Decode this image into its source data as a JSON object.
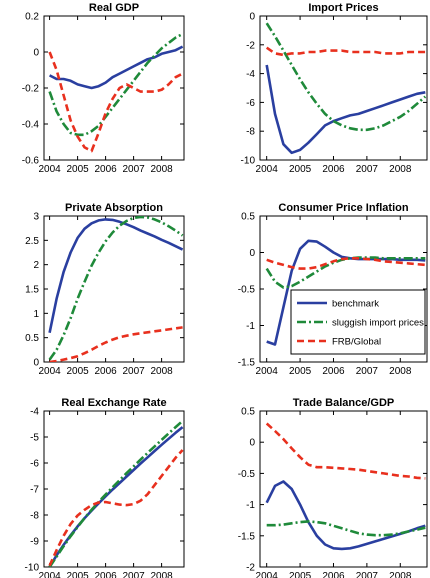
{
  "chart_data": [
    {
      "type": "line",
      "title": "Real GDP",
      "xlim": [
        2003.8,
        2008.8
      ],
      "ylim": [
        -0.6,
        0.2
      ],
      "xticks": [
        "2004",
        "2005",
        "2006",
        "2007",
        "2008"
      ],
      "yticks": [
        "-0.6",
        "-0.4",
        "-0.2",
        "0",
        "0.2"
      ],
      "series": [
        {
          "name": "benchmark",
          "x": [
            2004.0,
            2004.25,
            2004.5,
            2004.75,
            2005.0,
            2005.25,
            2005.5,
            2005.75,
            2006.0,
            2006.25,
            2006.5,
            2006.75,
            2007.0,
            2007.25,
            2007.5,
            2007.75,
            2008.0,
            2008.25,
            2008.5,
            2008.75
          ],
          "y": [
            -0.13,
            -0.15,
            -0.15,
            -0.16,
            -0.18,
            -0.19,
            -0.2,
            -0.19,
            -0.17,
            -0.14,
            -0.12,
            -0.1,
            -0.08,
            -0.06,
            -0.04,
            -0.03,
            -0.01,
            0.0,
            0.01,
            0.03
          ]
        },
        {
          "name": "sluggish import prices",
          "x": [
            2004.0,
            2004.25,
            2004.5,
            2004.75,
            2005.0,
            2005.25,
            2005.5,
            2005.75,
            2006.0,
            2006.25,
            2006.5,
            2006.75,
            2007.0,
            2007.25,
            2007.5,
            2007.75,
            2008.0,
            2008.25,
            2008.5,
            2008.75
          ],
          "y": [
            -0.22,
            -0.33,
            -0.4,
            -0.45,
            -0.46,
            -0.46,
            -0.44,
            -0.41,
            -0.36,
            -0.31,
            -0.26,
            -0.21,
            -0.16,
            -0.11,
            -0.06,
            -0.02,
            0.02,
            0.05,
            0.08,
            0.1
          ]
        },
        {
          "name": "FRB/Global",
          "x": [
            2004.0,
            2004.25,
            2004.5,
            2004.75,
            2005.0,
            2005.25,
            2005.5,
            2005.75,
            2006.0,
            2006.25,
            2006.5,
            2006.75,
            2007.0,
            2007.25,
            2007.5,
            2007.75,
            2008.0,
            2008.25,
            2008.5,
            2008.75
          ],
          "y": [
            0.0,
            -0.1,
            -0.24,
            -0.38,
            -0.47,
            -0.53,
            -0.55,
            -0.45,
            -0.34,
            -0.26,
            -0.2,
            -0.18,
            -0.2,
            -0.22,
            -0.22,
            -0.22,
            -0.21,
            -0.18,
            -0.14,
            -0.12
          ]
        }
      ]
    },
    {
      "type": "line",
      "title": "Import Prices",
      "xlim": [
        2003.8,
        2008.8
      ],
      "ylim": [
        -10,
        0
      ],
      "xticks": [
        "2004",
        "2005",
        "2006",
        "2007",
        "2008"
      ],
      "yticks": [
        "-10",
        "-8",
        "-6",
        "-4",
        "-2",
        "0"
      ],
      "series": [
        {
          "name": "benchmark",
          "x": [
            2004.0,
            2004.25,
            2004.5,
            2004.75,
            2005.0,
            2005.25,
            2005.5,
            2005.75,
            2006.0,
            2006.25,
            2006.5,
            2006.75,
            2007.0,
            2007.25,
            2007.5,
            2007.75,
            2008.0,
            2008.25,
            2008.5,
            2008.75
          ],
          "y": [
            -3.4,
            -6.8,
            -8.9,
            -9.5,
            -9.3,
            -8.8,
            -8.2,
            -7.6,
            -7.3,
            -7.1,
            -6.9,
            -6.8,
            -6.6,
            -6.4,
            -6.2,
            -6.0,
            -5.8,
            -5.6,
            -5.4,
            -5.3
          ]
        },
        {
          "name": "sluggish import prices",
          "x": [
            2004.0,
            2004.25,
            2004.5,
            2004.75,
            2005.0,
            2005.25,
            2005.5,
            2005.75,
            2006.0,
            2006.25,
            2006.5,
            2006.75,
            2007.0,
            2007.25,
            2007.5,
            2007.75,
            2008.0,
            2008.25,
            2008.5,
            2008.75
          ],
          "y": [
            -0.5,
            -1.4,
            -2.4,
            -3.4,
            -4.4,
            -5.3,
            -6.1,
            -6.8,
            -7.3,
            -7.6,
            -7.8,
            -7.9,
            -7.9,
            -7.8,
            -7.6,
            -7.3,
            -7.0,
            -6.6,
            -6.1,
            -5.6
          ]
        },
        {
          "name": "FRB/Global",
          "x": [
            2004.0,
            2004.25,
            2004.5,
            2004.75,
            2005.0,
            2005.25,
            2005.5,
            2005.75,
            2006.0,
            2006.25,
            2006.5,
            2006.75,
            2007.0,
            2007.25,
            2007.5,
            2007.75,
            2008.0,
            2008.25,
            2008.5,
            2008.75
          ],
          "y": [
            -2.2,
            -2.6,
            -2.7,
            -2.6,
            -2.6,
            -2.5,
            -2.5,
            -2.4,
            -2.4,
            -2.4,
            -2.5,
            -2.5,
            -2.5,
            -2.5,
            -2.6,
            -2.6,
            -2.6,
            -2.5,
            -2.5,
            -2.5
          ]
        }
      ]
    },
    {
      "type": "line",
      "title": "Private Absorption",
      "xlim": [
        2003.8,
        2008.8
      ],
      "ylim": [
        0,
        3
      ],
      "xticks": [
        "2004",
        "2005",
        "2006",
        "2007",
        "2008"
      ],
      "yticks": [
        "0",
        "0.5",
        "1",
        "1.5",
        "2",
        "2.5",
        "3"
      ],
      "series": [
        {
          "name": "benchmark",
          "x": [
            2004.0,
            2004.25,
            2004.5,
            2004.75,
            2005.0,
            2005.25,
            2005.5,
            2005.75,
            2006.0,
            2006.25,
            2006.5,
            2006.75,
            2007.0,
            2007.25,
            2007.5,
            2007.75,
            2008.0,
            2008.25,
            2008.5,
            2008.75
          ],
          "y": [
            0.6,
            1.3,
            1.85,
            2.25,
            2.55,
            2.74,
            2.85,
            2.91,
            2.93,
            2.92,
            2.88,
            2.83,
            2.77,
            2.7,
            2.64,
            2.58,
            2.51,
            2.45,
            2.38,
            2.31
          ]
        },
        {
          "name": "sluggish import prices",
          "x": [
            2004.0,
            2004.25,
            2004.5,
            2004.75,
            2005.0,
            2005.25,
            2005.5,
            2005.75,
            2006.0,
            2006.25,
            2006.5,
            2006.75,
            2007.0,
            2007.25,
            2007.5,
            2007.75,
            2008.0,
            2008.25,
            2008.5,
            2008.75
          ],
          "y": [
            0.05,
            0.25,
            0.55,
            0.9,
            1.3,
            1.65,
            1.98,
            2.25,
            2.48,
            2.66,
            2.8,
            2.9,
            2.96,
            2.98,
            2.97,
            2.93,
            2.87,
            2.79,
            2.7,
            2.6
          ]
        },
        {
          "name": "FRB/Global",
          "x": [
            2004.0,
            2004.25,
            2004.5,
            2004.75,
            2005.0,
            2005.25,
            2005.5,
            2005.75,
            2006.0,
            2006.25,
            2006.5,
            2006.75,
            2007.0,
            2007.25,
            2007.5,
            2007.75,
            2008.0,
            2008.25,
            2008.5,
            2008.75
          ],
          "y": [
            0.0,
            0.02,
            0.05,
            0.08,
            0.12,
            0.18,
            0.25,
            0.33,
            0.4,
            0.46,
            0.51,
            0.54,
            0.57,
            0.59,
            0.61,
            0.63,
            0.65,
            0.67,
            0.69,
            0.71
          ]
        }
      ]
    },
    {
      "type": "line",
      "title": "Consumer Price Inflation",
      "xlim": [
        2003.8,
        2008.8
      ],
      "ylim": [
        -1.5,
        0.5
      ],
      "xticks": [
        "2004",
        "2005",
        "2006",
        "2007",
        "2008"
      ],
      "yticks": [
        "-1.5",
        "-1",
        "-0.5",
        "0",
        "0.5"
      ],
      "series": [
        {
          "name": "benchmark",
          "x": [
            2004.0,
            2004.25,
            2004.5,
            2004.75,
            2005.0,
            2005.25,
            2005.5,
            2005.75,
            2006.0,
            2006.25,
            2006.5,
            2006.75,
            2007.0,
            2007.25,
            2007.5,
            2007.75,
            2008.0,
            2008.25,
            2008.5,
            2008.75
          ],
          "y": [
            -1.22,
            -1.26,
            -0.75,
            -0.25,
            0.05,
            0.16,
            0.15,
            0.08,
            0.0,
            -0.06,
            -0.08,
            -0.09,
            -0.09,
            -0.09,
            -0.09,
            -0.09,
            -0.1,
            -0.1,
            -0.1,
            -0.11
          ]
        },
        {
          "name": "sluggish import prices",
          "x": [
            2004.0,
            2004.25,
            2004.5,
            2004.75,
            2005.0,
            2005.25,
            2005.5,
            2005.75,
            2006.0,
            2006.25,
            2006.5,
            2006.75,
            2007.0,
            2007.25,
            2007.5,
            2007.75,
            2008.0,
            2008.25,
            2008.5,
            2008.75
          ],
          "y": [
            -0.22,
            -0.4,
            -0.48,
            -0.46,
            -0.4,
            -0.33,
            -0.26,
            -0.19,
            -0.14,
            -0.1,
            -0.08,
            -0.07,
            -0.07,
            -0.07,
            -0.08,
            -0.08,
            -0.08,
            -0.08,
            -0.08,
            -0.08
          ]
        },
        {
          "name": "FRB/Global",
          "x": [
            2004.0,
            2004.25,
            2004.5,
            2004.75,
            2005.0,
            2005.25,
            2005.5,
            2005.75,
            2006.0,
            2006.25,
            2006.5,
            2006.75,
            2007.0,
            2007.25,
            2007.5,
            2007.75,
            2008.0,
            2008.25,
            2008.5,
            2008.75
          ],
          "y": [
            -0.1,
            -0.14,
            -0.17,
            -0.2,
            -0.22,
            -0.22,
            -0.2,
            -0.16,
            -0.12,
            -0.09,
            -0.08,
            -0.08,
            -0.09,
            -0.1,
            -0.12,
            -0.13,
            -0.14,
            -0.15,
            -0.16,
            -0.17
          ]
        }
      ]
    },
    {
      "type": "line",
      "title": "Real Exchange Rate",
      "xlim": [
        2003.8,
        2008.8
      ],
      "ylim": [
        -10,
        -4
      ],
      "xticks": [
        "2004",
        "2005",
        "2006",
        "2007",
        "2008"
      ],
      "yticks": [
        "-10",
        "-9",
        "-8",
        "-7",
        "-6",
        "-5",
        "-4"
      ],
      "series": [
        {
          "name": "benchmark",
          "x": [
            2004.0,
            2004.25,
            2004.5,
            2004.75,
            2005.0,
            2005.25,
            2005.5,
            2005.75,
            2006.0,
            2006.25,
            2006.5,
            2006.75,
            2007.0,
            2007.25,
            2007.5,
            2007.75,
            2008.0,
            2008.25,
            2008.5,
            2008.75
          ],
          "y": [
            -10.0,
            -9.55,
            -9.15,
            -8.78,
            -8.44,
            -8.12,
            -7.83,
            -7.55,
            -7.28,
            -7.02,
            -6.77,
            -6.52,
            -6.27,
            -6.02,
            -5.78,
            -5.54,
            -5.3,
            -5.07,
            -4.84,
            -4.62
          ]
        },
        {
          "name": "sluggish import prices",
          "x": [
            2004.0,
            2004.25,
            2004.5,
            2004.75,
            2005.0,
            2005.25,
            2005.5,
            2005.75,
            2006.0,
            2006.25,
            2006.5,
            2006.75,
            2007.0,
            2007.25,
            2007.5,
            2007.75,
            2008.0,
            2008.25,
            2008.5,
            2008.75
          ],
          "y": [
            -10.0,
            -9.6,
            -9.2,
            -8.82,
            -8.46,
            -8.12,
            -7.8,
            -7.5,
            -7.21,
            -6.93,
            -6.66,
            -6.39,
            -6.13,
            -5.87,
            -5.61,
            -5.36,
            -5.11,
            -4.86,
            -4.62,
            -4.38
          ]
        },
        {
          "name": "FRB/Global",
          "x": [
            2004.0,
            2004.25,
            2004.5,
            2004.75,
            2005.0,
            2005.25,
            2005.5,
            2005.75,
            2006.0,
            2006.25,
            2006.5,
            2006.75,
            2007.0,
            2007.25,
            2007.5,
            2007.75,
            2008.0,
            2008.25,
            2008.5,
            2008.75
          ],
          "y": [
            -9.95,
            -9.35,
            -8.8,
            -8.35,
            -8.02,
            -7.8,
            -7.62,
            -7.52,
            -7.5,
            -7.55,
            -7.6,
            -7.62,
            -7.58,
            -7.45,
            -7.2,
            -6.85,
            -6.5,
            -6.15,
            -5.8,
            -5.5
          ]
        }
      ]
    },
    {
      "type": "line",
      "title": "Trade Balance/GDP",
      "xlim": [
        2003.8,
        2008.8
      ],
      "ylim": [
        -2,
        0.5
      ],
      "xticks": [
        "2004",
        "2005",
        "2006",
        "2007",
        "2008"
      ],
      "yticks": [
        "-2",
        "-1.5",
        "-1",
        "-0.5",
        "0",
        "0.5"
      ],
      "series": [
        {
          "name": "benchmark",
          "x": [
            2004.0,
            2004.25,
            2004.5,
            2004.75,
            2005.0,
            2005.25,
            2005.5,
            2005.75,
            2006.0,
            2006.25,
            2006.5,
            2006.75,
            2007.0,
            2007.25,
            2007.5,
            2007.75,
            2008.0,
            2008.25,
            2008.5,
            2008.75
          ],
          "y": [
            -0.97,
            -0.7,
            -0.63,
            -0.75,
            -1.0,
            -1.28,
            -1.5,
            -1.64,
            -1.7,
            -1.71,
            -1.7,
            -1.67,
            -1.63,
            -1.59,
            -1.55,
            -1.51,
            -1.47,
            -1.43,
            -1.38,
            -1.34
          ]
        },
        {
          "name": "sluggish import prices",
          "x": [
            2004.0,
            2004.25,
            2004.5,
            2004.75,
            2005.0,
            2005.25,
            2005.5,
            2005.75,
            2006.0,
            2006.25,
            2006.5,
            2006.75,
            2007.0,
            2007.25,
            2007.5,
            2007.75,
            2008.0,
            2008.25,
            2008.5,
            2008.75
          ],
          "y": [
            -1.33,
            -1.33,
            -1.32,
            -1.3,
            -1.28,
            -1.27,
            -1.28,
            -1.3,
            -1.34,
            -1.38,
            -1.42,
            -1.46,
            -1.48,
            -1.49,
            -1.49,
            -1.48,
            -1.46,
            -1.43,
            -1.4,
            -1.37
          ]
        },
        {
          "name": "FRB/Global",
          "x": [
            2004.0,
            2004.25,
            2004.5,
            2004.75,
            2005.0,
            2005.25,
            2005.5,
            2005.75,
            2006.0,
            2006.25,
            2006.5,
            2006.75,
            2007.0,
            2007.25,
            2007.5,
            2007.75,
            2008.0,
            2008.25,
            2008.5,
            2008.75
          ],
          "y": [
            0.3,
            0.18,
            0.05,
            -0.1,
            -0.24,
            -0.36,
            -0.4,
            -0.4,
            -0.41,
            -0.42,
            -0.43,
            -0.44,
            -0.46,
            -0.48,
            -0.5,
            -0.52,
            -0.54,
            -0.55,
            -0.57,
            -0.58
          ]
        }
      ]
    }
  ],
  "legend": {
    "placement": "inside Consumer Price Inflation panel, lower right",
    "entries": [
      {
        "label": "benchmark",
        "style": "solid"
      },
      {
        "label": "sluggish import prices",
        "style": "dash-dot"
      },
      {
        "label": "FRB/Global",
        "style": "dashed"
      }
    ]
  },
  "colors": {
    "benchmark": "#2a3fa0",
    "sluggish import prices": "#1f8a3a",
    "FRB/Global": "#e8301e"
  }
}
